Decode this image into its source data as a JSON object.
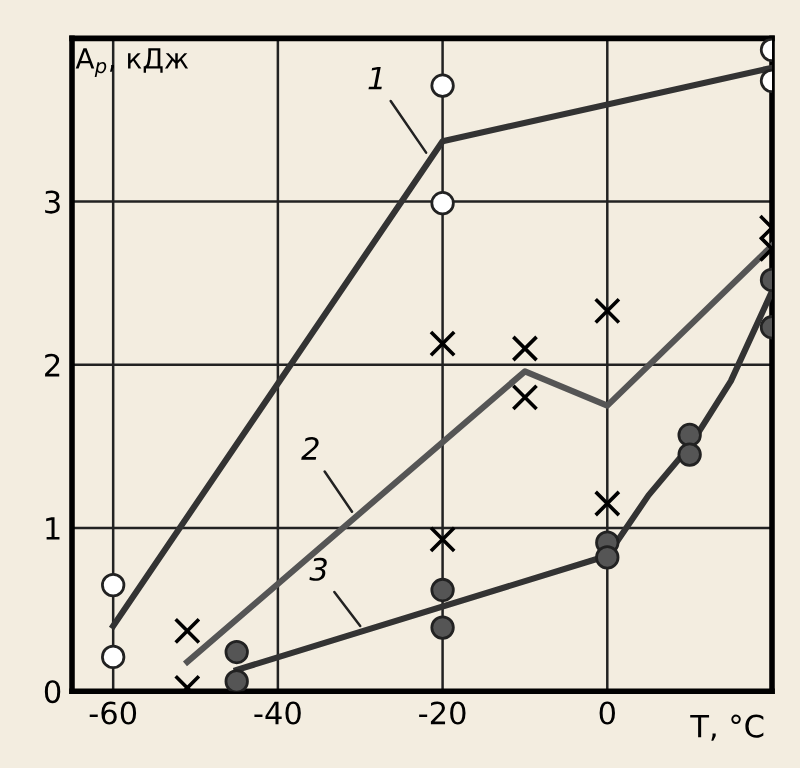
{
  "chart_data": {
    "type": "line",
    "xlabel": "T, °C",
    "ylabel": "A$_{р}$, кДж",
    "xlim": [
      -65,
      20
    ],
    "ylim": [
      0,
      4
    ],
    "xticks": [
      -60,
      -40,
      -20,
      0
    ],
    "yticks": [
      0,
      1,
      2,
      3
    ],
    "grid": true,
    "series": [
      {
        "color": "#333333",
        "marker": "none",
        "x": [
          -60,
          -20,
          20
        ],
        "values": [
          0.4,
          3.37,
          3.82
        ]
      },
      {
        "color": "#555555",
        "marker": "none",
        "x": [
          -51,
          -10,
          0,
          20
        ],
        "values": [
          0.18,
          1.96,
          1.75,
          2.73
        ]
      },
      {
        "color": "#333333",
        "marker": "none",
        "x": [
          -45,
          0,
          5,
          10,
          15,
          20
        ],
        "values": [
          0.13,
          0.83,
          1.2,
          1.5,
          1.9,
          2.45
        ]
      },
      {
        "type": "scatter",
        "color": "#ffffff",
        "marker": "circle",
        "x": [
          -60,
          -60,
          -20,
          -20,
          20,
          20
        ],
        "values": [
          0.65,
          0.21,
          3.71,
          2.99,
          3.93,
          3.74
        ]
      },
      {
        "type": "scatter",
        "color": "#000000",
        "marker": "cross",
        "x": [
          -51,
          -51,
          -20,
          -20,
          -10,
          -10,
          0,
          0,
          20,
          20
        ],
        "values": [
          0.37,
          0.02,
          2.13,
          0.93,
          2.1,
          1.8,
          2.33,
          1.15,
          2.84,
          2.71
        ]
      },
      {
        "type": "scatter",
        "color": "#555555",
        "marker": "circle",
        "x": [
          -45,
          -45,
          -20,
          -20,
          0,
          0,
          10,
          10,
          20,
          20
        ],
        "values": [
          0.24,
          0.06,
          0.62,
          0.39,
          0.91,
          0.82,
          1.57,
          1.45,
          2.52,
          2.23
        ]
      }
    ],
    "annotations": [
      {
        "text": "1",
        "x": -22,
        "y": 3.3
      },
      {
        "text": "2",
        "x": -31,
        "y": 1.1
      },
      {
        "text": "3",
        "x": -30,
        "y": 0.4
      }
    ]
  }
}
